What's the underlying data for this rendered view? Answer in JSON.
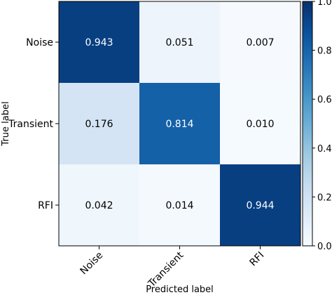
{
  "chart_data": {
    "type": "heatmap",
    "title": "",
    "xlabel": "Predicted label",
    "ylabel": "True label",
    "x_categories": [
      "Noise",
      "Transient",
      "RFI"
    ],
    "y_categories": [
      "Noise",
      "Transient",
      "RFI"
    ],
    "values": [
      [
        0.943,
        0.051,
        0.007
      ],
      [
        0.176,
        0.814,
        0.01
      ],
      [
        0.042,
        0.014,
        0.944
      ]
    ],
    "value_labels": [
      [
        "0.943",
        "0.051",
        "0.007"
      ],
      [
        "0.176",
        "0.814",
        "0.010"
      ],
      [
        "0.042",
        "0.014",
        "0.944"
      ]
    ],
    "colormap": "Blues",
    "colorbar": {
      "range": [
        0.0,
        1.0
      ],
      "ticks": [
        0.0,
        0.2,
        0.4,
        0.6,
        0.8,
        1.0
      ],
      "tick_labels": [
        "0.0",
        "0.2",
        "0.4",
        "0.6",
        "0.8",
        "1.0"
      ]
    },
    "grid": false,
    "legend": "colorbar-right"
  }
}
